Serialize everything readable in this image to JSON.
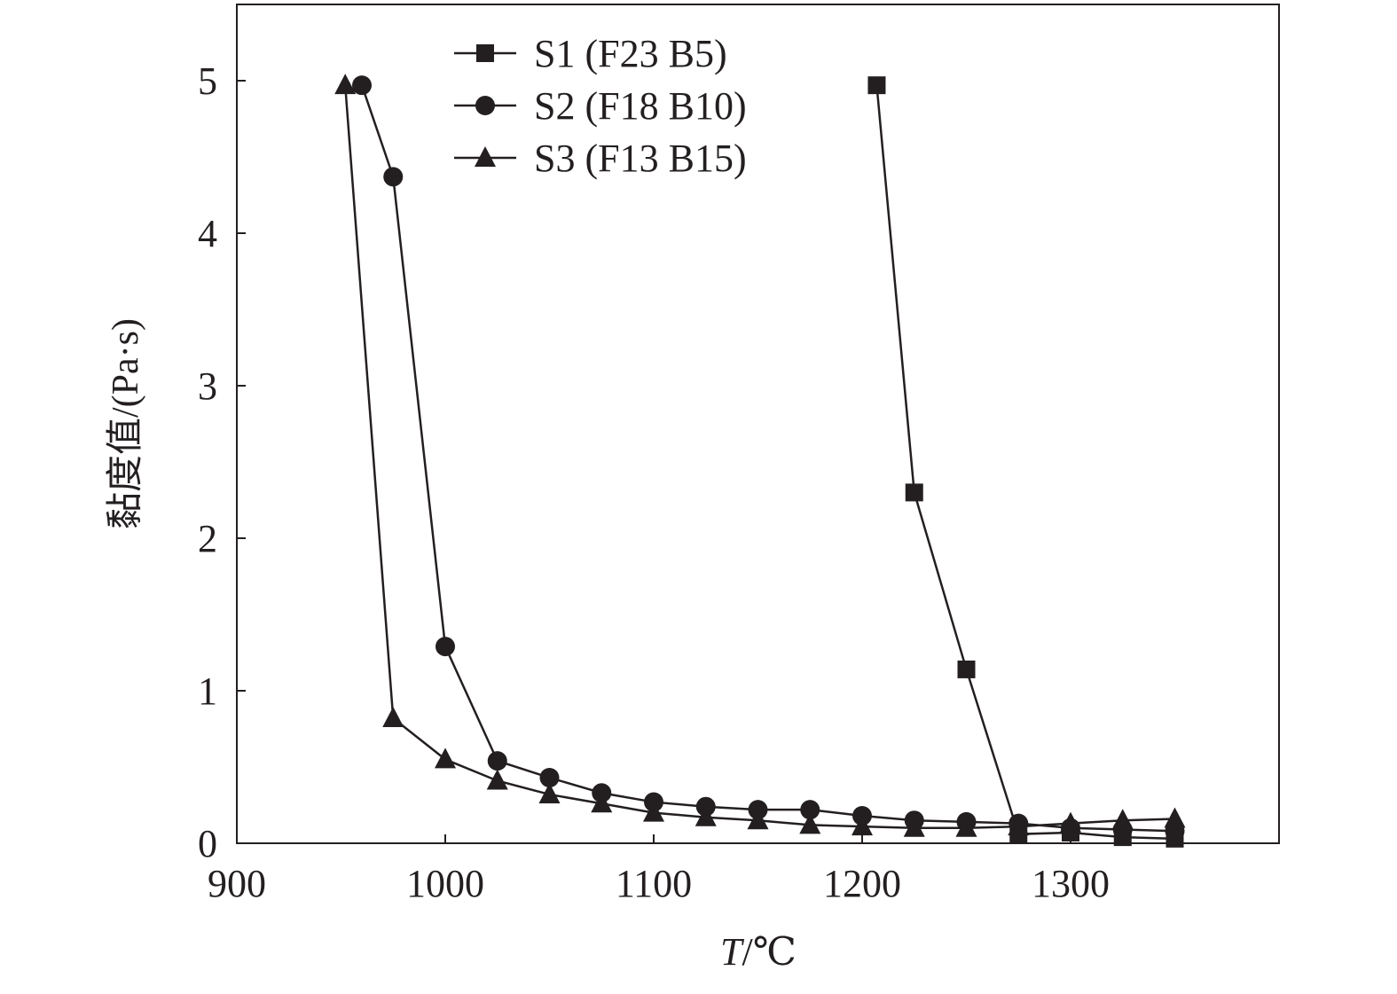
{
  "chart_data": {
    "type": "line",
    "title": "",
    "xlabel_italic": "T",
    "xlabel_unit": "/℃",
    "ylabel": "黏度值/(Pa·s)",
    "xlim": [
      900,
      1400
    ],
    "ylim": [
      0,
      5.5
    ],
    "xticks": [
      900,
      1000,
      1100,
      1200,
      1300
    ],
    "yticks": [
      0,
      1,
      2,
      3,
      4,
      5
    ],
    "grid": false,
    "legend_position": "top-center",
    "color": "#231f20",
    "series": [
      {
        "name": "S1 (F23 B5)",
        "marker": "square",
        "x": [
          1207,
          1225,
          1250,
          1275,
          1300,
          1325,
          1350
        ],
        "y": [
          4.97,
          2.3,
          1.14,
          0.06,
          0.07,
          0.04,
          0.03
        ]
      },
      {
        "name": "S2 (F18 B10)",
        "marker": "circle",
        "x": [
          960,
          975,
          1000,
          1025,
          1050,
          1075,
          1100,
          1125,
          1150,
          1175,
          1200,
          1225,
          1250,
          1275,
          1300,
          1325,
          1350
        ],
        "y": [
          4.97,
          4.37,
          1.29,
          0.54,
          0.43,
          0.33,
          0.27,
          0.24,
          0.22,
          0.22,
          0.18,
          0.15,
          0.14,
          0.13,
          0.1,
          0.09,
          0.08
        ]
      },
      {
        "name": "S3 (F13 B15)",
        "marker": "triangle",
        "x": [
          952,
          975,
          1000,
          1025,
          1050,
          1075,
          1100,
          1125,
          1150,
          1175,
          1200,
          1225,
          1250,
          1275,
          1300,
          1325,
          1350
        ],
        "y": [
          4.97,
          0.82,
          0.55,
          0.41,
          0.32,
          0.26,
          0.2,
          0.17,
          0.15,
          0.12,
          0.11,
          0.1,
          0.1,
          0.11,
          0.13,
          0.15,
          0.16
        ]
      }
    ]
  }
}
